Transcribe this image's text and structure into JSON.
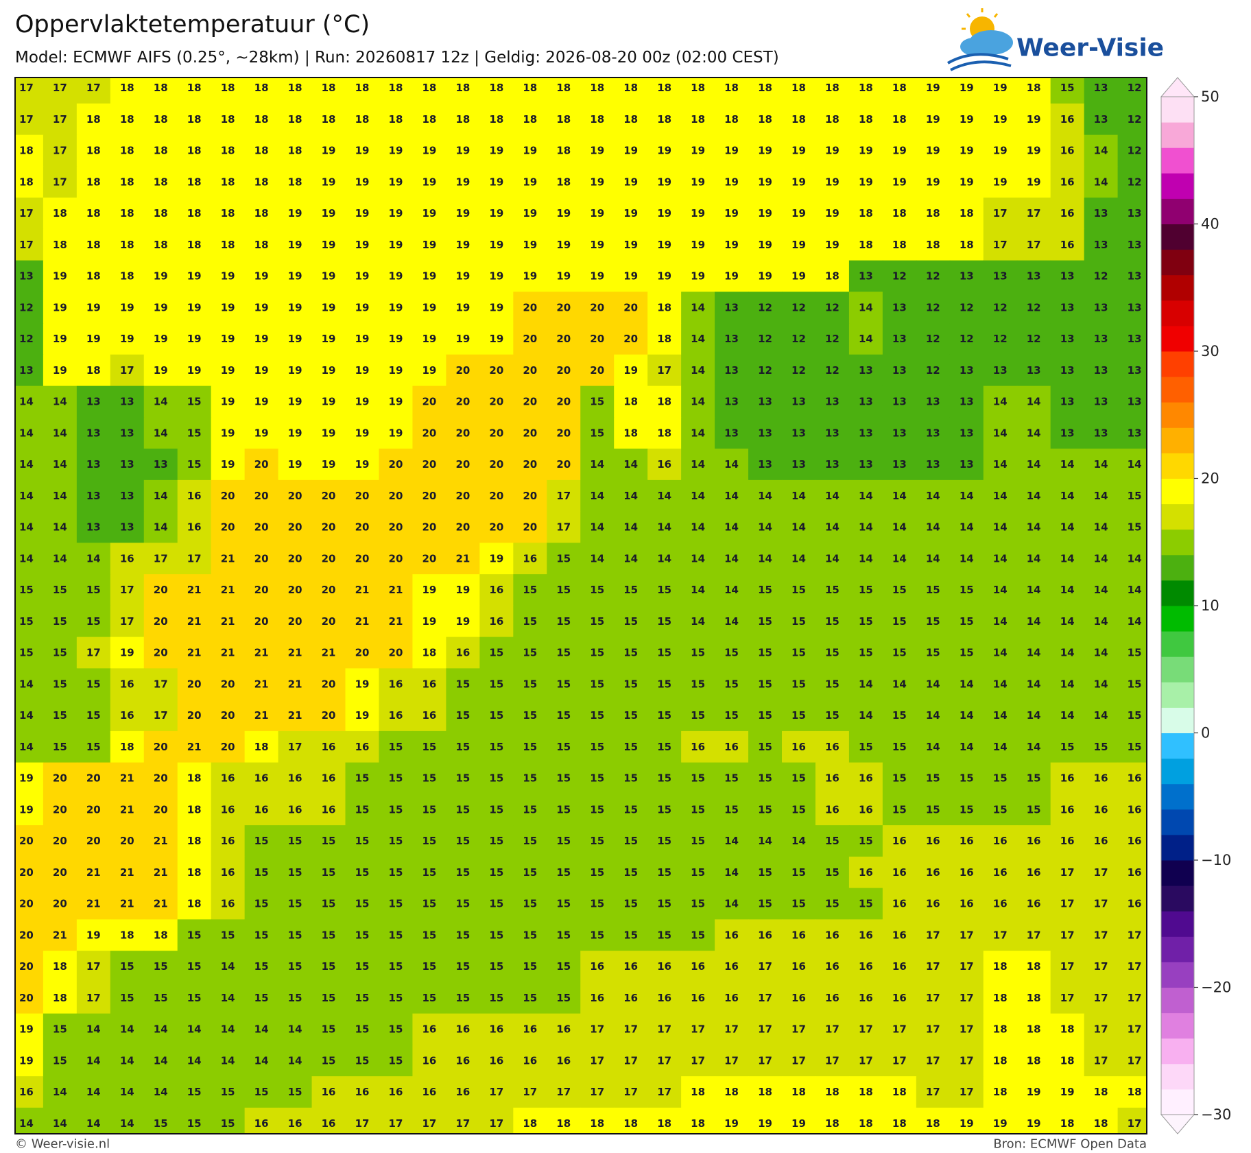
{
  "header": {
    "title": "Oppervlaktetemperatuur (°C)",
    "subtitle": "Model: ECMWF AIFS (0.25°, ~28km)  |  Run: 20260817 12z  |  Geldig: 2026-08-20 00z (02:00 CEST)",
    "brand": "Weer-Visie"
  },
  "map": {
    "grid": [
      [
        17,
        17,
        17,
        18,
        18,
        18,
        18,
        18,
        18,
        18,
        18,
        18,
        18,
        18,
        18,
        18,
        18,
        18,
        18,
        18,
        18,
        18,
        18,
        18,
        18,
        18,
        18,
        19,
        19,
        19,
        18,
        15,
        13,
        12
      ],
      [
        17,
        17,
        18,
        18,
        18,
        18,
        18,
        18,
        18,
        18,
        18,
        18,
        18,
        18,
        18,
        18,
        18,
        18,
        18,
        18,
        18,
        18,
        18,
        18,
        18,
        18,
        18,
        19,
        19,
        19,
        19,
        16,
        13,
        12
      ],
      [
        18,
        17,
        18,
        18,
        18,
        18,
        18,
        18,
        18,
        19,
        19,
        19,
        19,
        19,
        19,
        19,
        18,
        19,
        19,
        19,
        19,
        19,
        19,
        19,
        19,
        19,
        19,
        19,
        19,
        19,
        19,
        16,
        14,
        12
      ],
      [
        18,
        17,
        18,
        18,
        18,
        18,
        18,
        18,
        18,
        19,
        19,
        19,
        19,
        19,
        19,
        19,
        18,
        19,
        19,
        19,
        19,
        19,
        19,
        19,
        19,
        19,
        19,
        19,
        19,
        19,
        19,
        16,
        14,
        12
      ],
      [
        17,
        18,
        18,
        18,
        18,
        18,
        18,
        18,
        19,
        19,
        19,
        19,
        19,
        19,
        19,
        19,
        19,
        19,
        19,
        19,
        19,
        19,
        19,
        19,
        19,
        18,
        18,
        18,
        18,
        17,
        17,
        16,
        13,
        13
      ],
      [
        17,
        18,
        18,
        18,
        18,
        18,
        18,
        18,
        19,
        19,
        19,
        19,
        19,
        19,
        19,
        19,
        19,
        19,
        19,
        19,
        19,
        19,
        19,
        19,
        19,
        18,
        18,
        18,
        18,
        17,
        17,
        16,
        13,
        13
      ],
      [
        13,
        19,
        18,
        18,
        19,
        19,
        19,
        19,
        19,
        19,
        19,
        19,
        19,
        19,
        19,
        19,
        19,
        19,
        19,
        19,
        19,
        19,
        19,
        19,
        18,
        13,
        12,
        12,
        13,
        13,
        13,
        13,
        12,
        13
      ],
      [
        12,
        19,
        19,
        19,
        19,
        19,
        19,
        19,
        19,
        19,
        19,
        19,
        19,
        19,
        19,
        20,
        20,
        20,
        20,
        18,
        14,
        13,
        12,
        12,
        12,
        14,
        13,
        12,
        12,
        12,
        12,
        13,
        13,
        13
      ],
      [
        12,
        19,
        19,
        19,
        19,
        19,
        19,
        19,
        19,
        19,
        19,
        19,
        19,
        19,
        19,
        20,
        20,
        20,
        20,
        18,
        14,
        13,
        12,
        12,
        12,
        14,
        13,
        12,
        12,
        12,
        12,
        13,
        13,
        13
      ],
      [
        13,
        19,
        18,
        17,
        19,
        19,
        19,
        19,
        19,
        19,
        19,
        19,
        19,
        20,
        20,
        20,
        20,
        20,
        19,
        17,
        14,
        13,
        12,
        12,
        12,
        13,
        13,
        12,
        13,
        13,
        13,
        13,
        13,
        13
      ],
      [
        14,
        14,
        13,
        13,
        14,
        15,
        19,
        19,
        19,
        19,
        19,
        19,
        20,
        20,
        20,
        20,
        20,
        15,
        18,
        18,
        14,
        13,
        13,
        13,
        13,
        13,
        13,
        13,
        13,
        14,
        14,
        13,
        13,
        13
      ],
      [
        14,
        14,
        13,
        13,
        14,
        15,
        19,
        19,
        19,
        19,
        19,
        19,
        20,
        20,
        20,
        20,
        20,
        15,
        18,
        18,
        14,
        13,
        13,
        13,
        13,
        13,
        13,
        13,
        13,
        14,
        14,
        13,
        13,
        13
      ],
      [
        14,
        14,
        13,
        13,
        13,
        15,
        19,
        20,
        19,
        19,
        19,
        20,
        20,
        20,
        20,
        20,
        20,
        14,
        14,
        16,
        14,
        14,
        13,
        13,
        13,
        13,
        13,
        13,
        13,
        14,
        14,
        14,
        14,
        14
      ],
      [
        14,
        14,
        13,
        13,
        14,
        16,
        20,
        20,
        20,
        20,
        20,
        20,
        20,
        20,
        20,
        20,
        17,
        14,
        14,
        14,
        14,
        14,
        14,
        14,
        14,
        14,
        14,
        14,
        14,
        14,
        14,
        14,
        14,
        15
      ],
      [
        14,
        14,
        13,
        13,
        14,
        16,
        20,
        20,
        20,
        20,
        20,
        20,
        20,
        20,
        20,
        20,
        17,
        14,
        14,
        14,
        14,
        14,
        14,
        14,
        14,
        14,
        14,
        14,
        14,
        14,
        14,
        14,
        14,
        15
      ],
      [
        14,
        14,
        14,
        16,
        17,
        17,
        21,
        20,
        20,
        20,
        20,
        20,
        20,
        21,
        19,
        16,
        15,
        14,
        14,
        14,
        14,
        14,
        14,
        14,
        14,
        14,
        14,
        14,
        14,
        14,
        14,
        14,
        14,
        14
      ],
      [
        15,
        15,
        15,
        17,
        20,
        21,
        21,
        20,
        20,
        20,
        21,
        21,
        19,
        19,
        16,
        15,
        15,
        15,
        15,
        15,
        14,
        14,
        15,
        15,
        15,
        15,
        15,
        15,
        15,
        14,
        14,
        14,
        14,
        14
      ],
      [
        15,
        15,
        15,
        17,
        20,
        21,
        21,
        20,
        20,
        20,
        21,
        21,
        19,
        19,
        16,
        15,
        15,
        15,
        15,
        15,
        14,
        14,
        15,
        15,
        15,
        15,
        15,
        15,
        15,
        14,
        14,
        14,
        14,
        14
      ],
      [
        15,
        15,
        17,
        19,
        20,
        21,
        21,
        21,
        21,
        21,
        20,
        20,
        18,
        16,
        15,
        15,
        15,
        15,
        15,
        15,
        15,
        15,
        15,
        15,
        15,
        15,
        15,
        15,
        15,
        14,
        14,
        14,
        14,
        15
      ],
      [
        14,
        15,
        15,
        16,
        17,
        20,
        20,
        21,
        21,
        20,
        19,
        16,
        16,
        15,
        15,
        15,
        15,
        15,
        15,
        15,
        15,
        15,
        15,
        15,
        15,
        14,
        14,
        14,
        14,
        14,
        14,
        14,
        14,
        15
      ],
      [
        14,
        15,
        15,
        16,
        17,
        20,
        20,
        21,
        21,
        20,
        19,
        16,
        16,
        15,
        15,
        15,
        15,
        15,
        15,
        15,
        15,
        15,
        15,
        15,
        15,
        14,
        15,
        14,
        14,
        14,
        14,
        14,
        14,
        15
      ],
      [
        14,
        15,
        15,
        18,
        20,
        21,
        20,
        18,
        17,
        16,
        16,
        15,
        15,
        15,
        15,
        15,
        15,
        15,
        15,
        15,
        16,
        16,
        15,
        16,
        16,
        15,
        15,
        14,
        14,
        14,
        14,
        15,
        15,
        15
      ],
      [
        19,
        20,
        20,
        21,
        20,
        18,
        16,
        16,
        16,
        16,
        15,
        15,
        15,
        15,
        15,
        15,
        15,
        15,
        15,
        15,
        15,
        15,
        15,
        15,
        16,
        16,
        15,
        15,
        15,
        15,
        15,
        16,
        16,
        16
      ],
      [
        19,
        20,
        20,
        21,
        20,
        18,
        16,
        16,
        16,
        16,
        15,
        15,
        15,
        15,
        15,
        15,
        15,
        15,
        15,
        15,
        15,
        15,
        15,
        15,
        16,
        16,
        15,
        15,
        15,
        15,
        15,
        16,
        16,
        16
      ],
      [
        20,
        20,
        20,
        20,
        21,
        18,
        16,
        15,
        15,
        15,
        15,
        15,
        15,
        15,
        15,
        15,
        15,
        15,
        15,
        15,
        15,
        14,
        14,
        14,
        15,
        15,
        16,
        16,
        16,
        16,
        16,
        16,
        16,
        16
      ],
      [
        20,
        20,
        21,
        21,
        21,
        18,
        16,
        15,
        15,
        15,
        15,
        15,
        15,
        15,
        15,
        15,
        15,
        15,
        15,
        15,
        15,
        14,
        15,
        15,
        15,
        16,
        16,
        16,
        16,
        16,
        16,
        17,
        17,
        16
      ],
      [
        20,
        20,
        21,
        21,
        21,
        18,
        16,
        15,
        15,
        15,
        15,
        15,
        15,
        15,
        15,
        15,
        15,
        15,
        15,
        15,
        15,
        14,
        15,
        15,
        15,
        15,
        16,
        16,
        16,
        16,
        16,
        17,
        17,
        16
      ],
      [
        20,
        21,
        19,
        18,
        18,
        15,
        15,
        15,
        15,
        15,
        15,
        15,
        15,
        15,
        15,
        15,
        15,
        15,
        15,
        15,
        15,
        16,
        16,
        16,
        16,
        16,
        16,
        17,
        17,
        17,
        17,
        17,
        17,
        17
      ],
      [
        20,
        18,
        17,
        15,
        15,
        15,
        14,
        15,
        15,
        15,
        15,
        15,
        15,
        15,
        15,
        15,
        15,
        16,
        16,
        16,
        16,
        16,
        17,
        16,
        16,
        16,
        16,
        17,
        17,
        18,
        18,
        17,
        17,
        17
      ],
      [
        20,
        18,
        17,
        15,
        15,
        15,
        14,
        15,
        15,
        15,
        15,
        15,
        15,
        15,
        15,
        15,
        15,
        16,
        16,
        16,
        16,
        16,
        17,
        16,
        16,
        16,
        16,
        17,
        17,
        18,
        18,
        17,
        17,
        17
      ],
      [
        19,
        15,
        14,
        14,
        14,
        14,
        14,
        14,
        14,
        15,
        15,
        15,
        16,
        16,
        16,
        16,
        16,
        17,
        17,
        17,
        17,
        17,
        17,
        17,
        17,
        17,
        17,
        17,
        17,
        18,
        18,
        18,
        17,
        17
      ],
      [
        19,
        15,
        14,
        14,
        14,
        14,
        14,
        14,
        14,
        15,
        15,
        15,
        16,
        16,
        16,
        16,
        16,
        17,
        17,
        17,
        17,
        17,
        17,
        17,
        17,
        17,
        17,
        17,
        17,
        18,
        18,
        18,
        17,
        17
      ],
      [
        16,
        14,
        14,
        14,
        14,
        15,
        15,
        15,
        15,
        16,
        16,
        16,
        16,
        16,
        17,
        17,
        17,
        17,
        17,
        17,
        18,
        18,
        18,
        18,
        18,
        18,
        18,
        17,
        17,
        18,
        19,
        19,
        18,
        18
      ],
      [
        14,
        14,
        14,
        14,
        15,
        15,
        15,
        16,
        16,
        16,
        17,
        17,
        17,
        17,
        17,
        18,
        18,
        18,
        18,
        18,
        18,
        19,
        19,
        19,
        18,
        18,
        18,
        18,
        19,
        19,
        19,
        18,
        18,
        17
      ]
    ],
    "colorbar": {
      "lim": [
        -30,
        50
      ],
      "ticks": [
        50,
        40,
        30,
        20,
        10,
        0,
        {
          "value": -10,
          "label": "−10"
        },
        {
          "value": -20,
          "label": "−20"
        },
        {
          "value": -30,
          "label": "−30"
        }
      ],
      "colors": [
        "#fff0ff",
        "#fdd8f8",
        "#f8b0f0",
        "#e080e0",
        "#c060d0",
        "#9840c0",
        "#7020a8",
        "#500a90",
        "#2a0a60",
        "#100050",
        "#002088",
        "#0048b0",
        "#0070cc",
        "#00a0e0",
        "#30c0ff",
        "#d8fce8",
        "#a8f0a8",
        "#78dc78",
        "#40c840",
        "#00bb00",
        "#008a00",
        "#4cb010",
        "#8ccc00",
        "#d4e000",
        "#ffff00",
        "#ffd800",
        "#ffb000",
        "#ff8800",
        "#ff6000",
        "#ff4000",
        "#f00000",
        "#d80000",
        "#b00000",
        "#800010",
        "#500030",
        "#900070",
        "#c000b0",
        "#f050d0",
        "#f8a8d8",
        "#fde0f4"
      ],
      "under_color": "#fdf4fd",
      "over_color": "#ffe6f8"
    }
  },
  "footer": {
    "copyright": "© Weer-visie.nl",
    "source": "Bron: ECMWF Open Data"
  }
}
